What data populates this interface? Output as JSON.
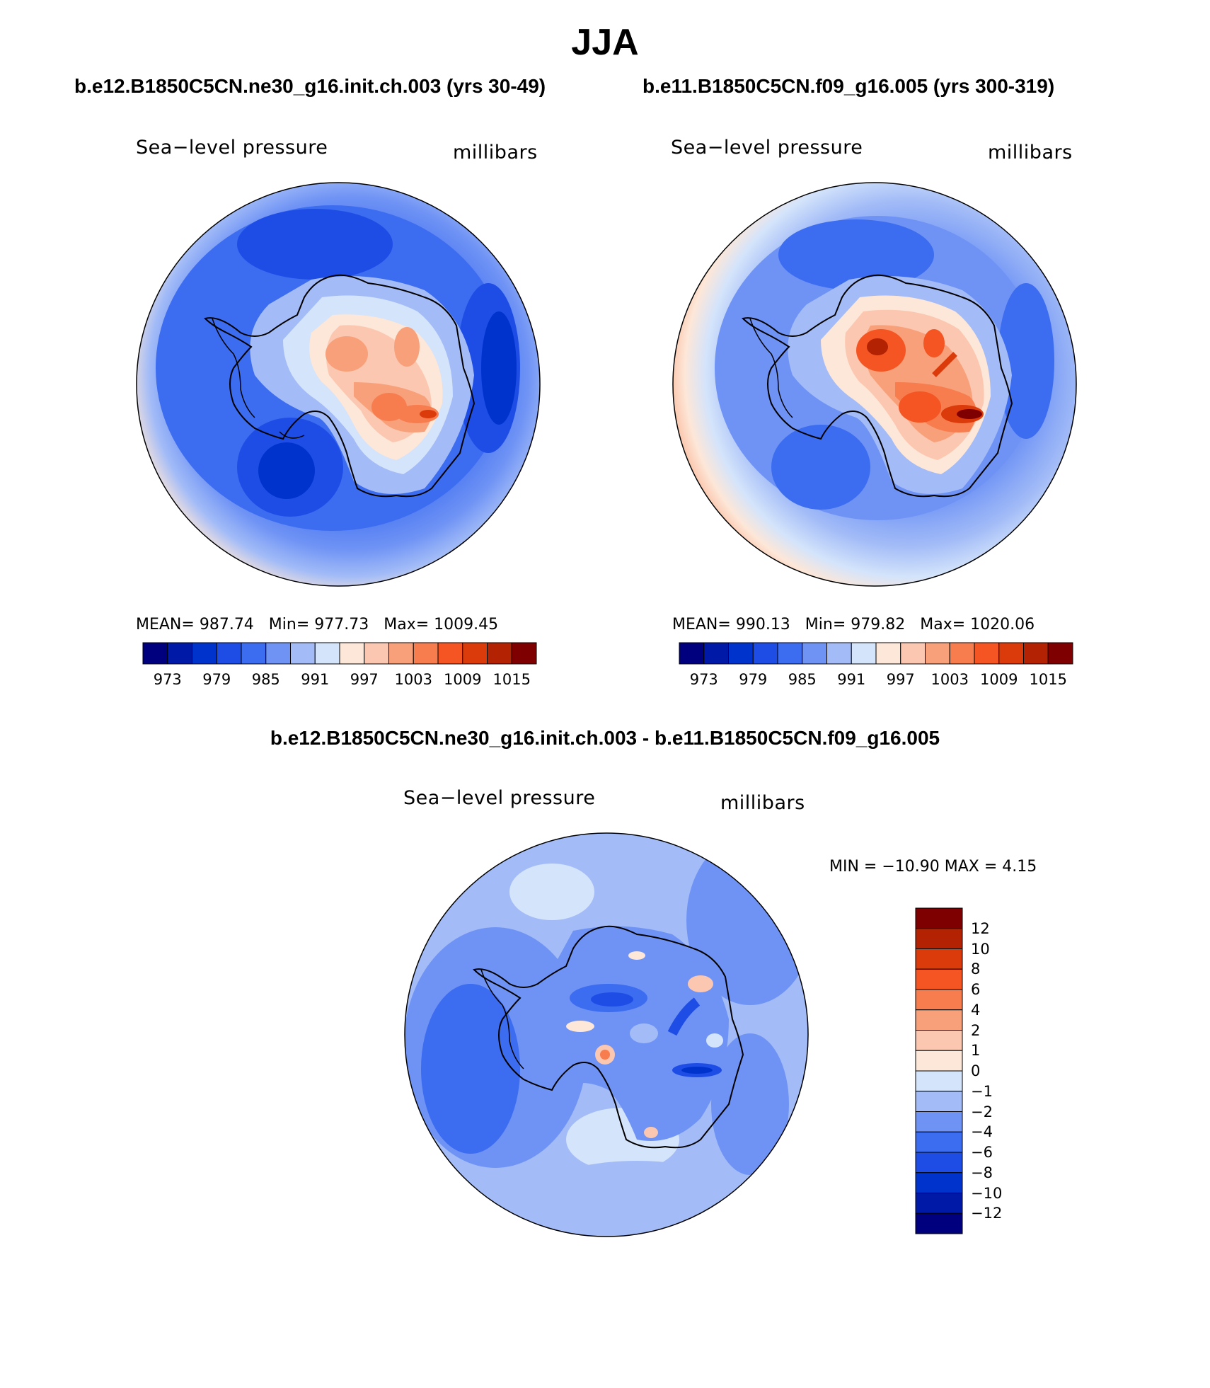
{
  "main_title": "JJA",
  "panels": {
    "case1": {
      "title": "b.e12.B1850C5CN.ne30_g16.init.ch.003 (yrs 30-49)",
      "variable": "Sea−level pressure",
      "units": "millibars",
      "mean_label": "MEAN=",
      "mean": "987.74",
      "min_label": "Min=",
      "min": "977.73",
      "max_label": "Max=",
      "max": "1009.45"
    },
    "case2": {
      "title": "b.e11.B1850C5CN.f09_g16.005 (yrs 300-319)",
      "variable": "Sea−level pressure",
      "units": "millibars",
      "mean_label": "MEAN=",
      "mean": "990.13",
      "min_label": "Min=",
      "min": "979.82",
      "max_label": "Max=",
      "max": "1020.06"
    },
    "diff": {
      "title": "b.e12.B1850C5CN.ne30_g16.init.ch.003 - b.e11.B1850C5CN.f09_g16.005",
      "variable": "Sea−level pressure",
      "units": "millibars",
      "minmax_text": "MIN = −10.90 MAX =    4.15"
    }
  },
  "colorbar_horizontal": {
    "colors": [
      "#00007f",
      "#0019a6",
      "#0033cc",
      "#1e4de6",
      "#3c6cf0",
      "#6f93f5",
      "#a3bcf7",
      "#d4e4fb",
      "#fde7d8",
      "#fcc7b0",
      "#f8a07a",
      "#f77c4e",
      "#f45522",
      "#db3a0a",
      "#b22203",
      "#7f0000"
    ],
    "labels": [
      "973",
      "979",
      "985",
      "991",
      "997",
      "1003",
      "1009",
      "1015"
    ]
  },
  "colorbar_vertical": {
    "colors_top_to_bottom": [
      "#7f0000",
      "#b22203",
      "#db3a0a",
      "#f45522",
      "#f77c4e",
      "#f8a07a",
      "#fcc7b0",
      "#fde7d8",
      "#d4e4fb",
      "#a3bcf7",
      "#6f93f5",
      "#3c6cf0",
      "#1e4de6",
      "#0033cc",
      "#0019a6",
      "#00007f"
    ],
    "labels": [
      "12",
      "10",
      "8",
      "6",
      "4",
      "2",
      "1",
      "0",
      "−1",
      "−2",
      "−4",
      "−6",
      "−8",
      "−10",
      "−12"
    ]
  }
}
